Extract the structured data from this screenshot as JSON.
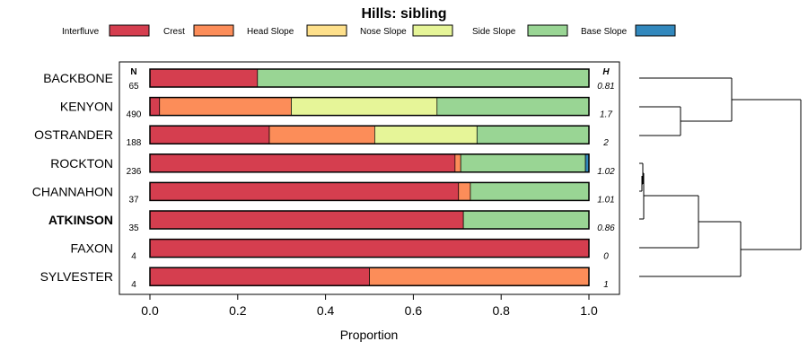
{
  "chart_data": {
    "type": "bar",
    "stacked": true,
    "orientation": "horizontal",
    "title": "Hills: sibling",
    "xlabel": "Proportion",
    "xlim": [
      0,
      1
    ],
    "xticks": [
      "0.0",
      "0.2",
      "0.4",
      "0.6",
      "0.8",
      "1.0"
    ],
    "xtick_values": [
      0,
      0.2,
      0.4,
      0.6,
      0.8,
      1.0
    ],
    "n_header": "N",
    "h_header": "H",
    "highlight_category": "ATKINSON",
    "legend": [
      {
        "name": "Interfluve",
        "color": "#d53e4f"
      },
      {
        "name": "Crest",
        "color": "#fc8d59"
      },
      {
        "name": "Head Slope",
        "color": "#fee08b"
      },
      {
        "name": "Nose Slope",
        "color": "#e6f598"
      },
      {
        "name": "Side Slope",
        "color": "#99d594"
      },
      {
        "name": "Base Slope",
        "color": "#3288bd"
      }
    ],
    "categories": [
      "BACKBONE",
      "KENYON",
      "OSTRANDER",
      "ROCKTON",
      "CHANNAHON",
      "ATKINSON",
      "FAXON",
      "SYLVESTER"
    ],
    "n_values": [
      "65",
      "490",
      "188",
      "236",
      "37",
      "35",
      "4",
      "4"
    ],
    "h_values": [
      "0.81",
      "1.7",
      "2",
      "1.02",
      "1.01",
      "0.86",
      "0",
      "1"
    ],
    "series": [
      {
        "name": "Interfluve",
        "values": [
          0.245,
          0.022,
          0.272,
          0.695,
          0.703,
          0.714,
          1.0,
          0.5
        ]
      },
      {
        "name": "Crest",
        "values": [
          0,
          0.3,
          0.24,
          0.013,
          0.027,
          0,
          0,
          0.5
        ]
      },
      {
        "name": "Head Slope",
        "values": [
          0,
          0,
          0,
          0,
          0,
          0,
          0,
          0
        ]
      },
      {
        "name": "Nose Slope",
        "values": [
          0,
          0.332,
          0.233,
          0,
          0,
          0,
          0,
          0
        ]
      },
      {
        "name": "Side Slope",
        "values": [
          0.755,
          0.346,
          0.255,
          0.284,
          0.27,
          0.286,
          0,
          0
        ]
      },
      {
        "name": "Base Slope",
        "values": [
          0,
          0,
          0,
          0.008,
          0,
          0,
          0,
          0
        ]
      }
    ]
  }
}
